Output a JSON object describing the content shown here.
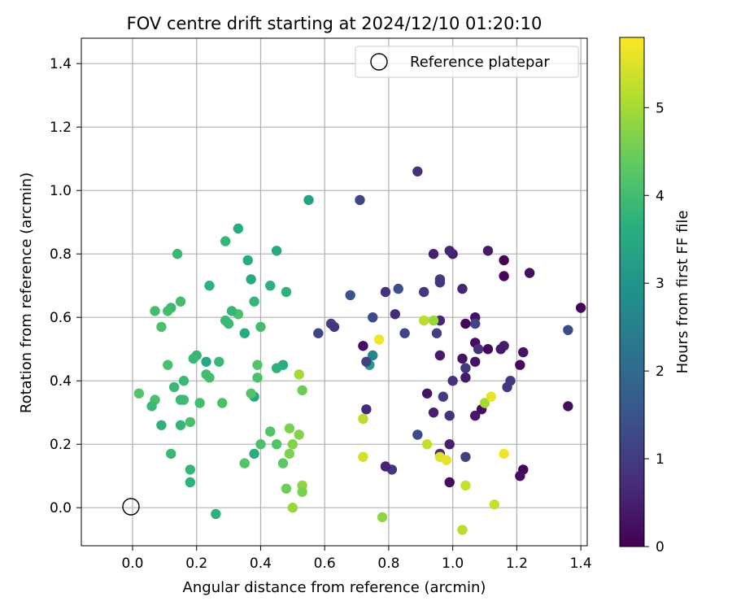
{
  "chart_data": {
    "type": "scatter",
    "title": "FOV centre drift starting at 2024/12/10 01:20:10",
    "xlabel": "Angular distance from reference (arcmin)",
    "ylabel": "Rotation from reference (arcmin)",
    "xlim": [
      -0.16,
      1.42
    ],
    "ylim": [
      -0.12,
      1.48
    ],
    "xticks": [
      0.0,
      0.2,
      0.4,
      0.6,
      0.8,
      1.0,
      1.2,
      1.4
    ],
    "xtick_labels": [
      "0.0",
      "0.2",
      "0.4",
      "0.6",
      "0.8",
      "1.0",
      "1.2",
      "1.4"
    ],
    "yticks": [
      0.0,
      0.2,
      0.4,
      0.6,
      0.8,
      1.0,
      1.2,
      1.4
    ],
    "ytick_labels": [
      "0.0",
      "0.2",
      "0.4",
      "0.6",
      "0.8",
      "1.0",
      "1.2",
      "1.4"
    ],
    "grid": true,
    "colormap": "viridis",
    "colorbar": {
      "label": "Hours from first FF file",
      "range": [
        0,
        5.8
      ],
      "ticks": [
        0,
        1,
        2,
        3,
        4,
        5
      ],
      "tick_labels": [
        "0",
        "1",
        "2",
        "3",
        "4",
        "5"
      ]
    },
    "legend": {
      "position": "top-right",
      "entries": [
        {
          "label": "Reference platepar",
          "marker": "open-circle"
        }
      ]
    },
    "reference_point": {
      "x": 0.0,
      "y": 0.0
    },
    "points": [
      [
        1.4,
        0.63,
        0.05
      ],
      [
        1.36,
        0.32,
        0.2
      ],
      [
        1.36,
        0.56,
        1.3
      ],
      [
        1.24,
        0.74,
        0.2
      ],
      [
        1.22,
        0.49,
        0.3
      ],
      [
        1.21,
        0.45,
        0.1
      ],
      [
        1.22,
        0.12,
        0.1
      ],
      [
        1.21,
        0.1,
        0.2
      ],
      [
        1.18,
        0.4,
        1.0
      ],
      [
        1.17,
        0.38,
        0.9
      ],
      [
        1.16,
        0.51,
        0.5
      ],
      [
        1.15,
        0.5,
        0.4
      ],
      [
        1.16,
        0.78,
        0.05
      ],
      [
        1.16,
        0.73,
        0.1
      ],
      [
        1.11,
        0.81,
        0.4
      ],
      [
        1.11,
        0.5,
        0.1
      ],
      [
        1.09,
        0.31,
        0.2
      ],
      [
        1.07,
        0.6,
        0.3
      ],
      [
        1.07,
        0.52,
        0.2
      ],
      [
        1.07,
        0.58,
        1.2
      ],
      [
        1.08,
        0.5,
        0.8
      ],
      [
        1.07,
        0.46,
        0.3
      ],
      [
        1.07,
        0.29,
        0.4
      ],
      [
        1.04,
        0.58,
        0.1
      ],
      [
        1.04,
        0.41,
        0.4
      ],
      [
        1.04,
        0.44,
        0.9
      ],
      [
        1.04,
        0.16,
        1.1
      ],
      [
        1.03,
        0.69,
        0.6
      ],
      [
        1.03,
        0.47,
        0.3
      ],
      [
        1.0,
        0.8,
        0.5
      ],
      [
        1.0,
        0.4,
        0.8
      ],
      [
        0.99,
        0.81,
        0.6
      ],
      [
        0.99,
        0.29,
        0.8
      ],
      [
        0.99,
        0.2,
        0.5
      ],
      [
        0.99,
        0.08,
        0.2
      ],
      [
        0.97,
        0.35,
        1.0
      ],
      [
        0.96,
        0.72,
        1.0
      ],
      [
        0.96,
        0.71,
        0.9
      ],
      [
        0.96,
        0.59,
        0.6
      ],
      [
        0.96,
        0.48,
        0.4
      ],
      [
        0.96,
        0.17,
        0.7
      ],
      [
        0.95,
        0.55,
        1.1
      ],
      [
        0.94,
        0.8,
        0.5
      ],
      [
        0.94,
        0.3,
        0.5
      ],
      [
        0.92,
        0.36,
        0.3
      ],
      [
        0.91,
        0.68,
        0.9
      ],
      [
        0.89,
        1.06,
        0.8
      ],
      [
        0.89,
        0.23,
        1.3
      ],
      [
        0.85,
        0.55,
        1.2
      ],
      [
        0.83,
        0.69,
        1.4
      ],
      [
        0.82,
        0.61,
        0.7
      ],
      [
        0.81,
        0.12,
        0.9
      ],
      [
        0.79,
        0.68,
        0.8
      ],
      [
        0.79,
        0.13,
        0.6
      ],
      [
        0.75,
        0.6,
        1.3
      ],
      [
        0.75,
        0.48,
        2.6
      ],
      [
        0.74,
        0.45,
        3.2
      ],
      [
        0.73,
        0.46,
        1.1
      ],
      [
        0.73,
        0.31,
        0.7
      ],
      [
        0.72,
        0.51,
        0.2
      ],
      [
        0.71,
        0.97,
        1.2
      ],
      [
        0.68,
        0.67,
        1.5
      ],
      [
        0.62,
        0.58,
        1.1
      ],
      [
        0.63,
        0.57,
        0.9
      ],
      [
        0.58,
        0.55,
        1.2
      ],
      [
        0.77,
        0.53,
        5.7
      ],
      [
        0.72,
        0.28,
        5.2
      ],
      [
        0.72,
        0.16,
        5.4
      ],
      [
        0.78,
        -0.03,
        4.8
      ],
      [
        0.91,
        0.59,
        5.2
      ],
      [
        0.94,
        0.59,
        4.9
      ],
      [
        0.92,
        0.2,
        5.3
      ],
      [
        0.96,
        0.16,
        5.5
      ],
      [
        0.98,
        0.15,
        5.6
      ],
      [
        1.03,
        -0.07,
        5.2
      ],
      [
        1.04,
        0.07,
        5.3
      ],
      [
        1.1,
        0.33,
        5.0
      ],
      [
        1.12,
        0.35,
        5.6
      ],
      [
        1.13,
        0.01,
        5.3
      ],
      [
        1.16,
        0.17,
        5.7
      ],
      [
        0.55,
        0.97,
        3.3
      ],
      [
        0.53,
        0.37,
        4.5
      ],
      [
        0.53,
        0.07,
        4.8
      ],
      [
        0.53,
        0.05,
        4.6
      ],
      [
        0.52,
        0.42,
        5.0
      ],
      [
        0.52,
        0.23,
        4.7
      ],
      [
        0.5,
        0.2,
        4.7
      ],
      [
        0.5,
        0.0,
        4.9
      ],
      [
        0.49,
        0.25,
        4.6
      ],
      [
        0.49,
        0.17,
        4.6
      ],
      [
        0.48,
        0.06,
        4.5
      ],
      [
        0.47,
        0.14,
        4.3
      ],
      [
        0.48,
        0.68,
        3.7
      ],
      [
        0.47,
        0.45,
        3.6
      ],
      [
        0.45,
        0.81,
        3.5
      ],
      [
        0.45,
        0.44,
        3.7
      ],
      [
        0.45,
        0.2,
        4.2
      ],
      [
        0.43,
        0.7,
        3.7
      ],
      [
        0.43,
        0.24,
        4.2
      ],
      [
        0.4,
        0.57,
        4.0
      ],
      [
        0.4,
        0.2,
        4.1
      ],
      [
        0.39,
        0.45,
        4.2
      ],
      [
        0.39,
        0.41,
        4.1
      ],
      [
        0.38,
        0.35,
        3.4
      ],
      [
        0.38,
        0.65,
        3.8
      ],
      [
        0.37,
        0.72,
        3.5
      ],
      [
        0.38,
        0.17,
        3.6
      ],
      [
        0.37,
        0.36,
        4.2
      ],
      [
        0.36,
        0.78,
        3.6
      ],
      [
        0.35,
        0.14,
        4.2
      ],
      [
        0.35,
        0.55,
        3.5
      ],
      [
        0.33,
        0.88,
        3.6
      ],
      [
        0.33,
        0.61,
        4.1
      ],
      [
        0.31,
        0.62,
        3.8
      ],
      [
        0.3,
        0.58,
        3.9
      ],
      [
        0.29,
        0.84,
        3.8
      ],
      [
        0.29,
        0.59,
        3.9
      ],
      [
        0.28,
        0.33,
        4.1
      ],
      [
        0.27,
        0.46,
        3.9
      ],
      [
        0.26,
        -0.02,
        3.7
      ],
      [
        0.24,
        0.41,
        4.0
      ],
      [
        0.24,
        0.7,
        3.7
      ],
      [
        0.23,
        0.46,
        3.5
      ],
      [
        0.23,
        0.42,
        4.0
      ],
      [
        0.21,
        0.33,
        4.0
      ],
      [
        0.2,
        0.48,
        3.8
      ],
      [
        0.19,
        0.47,
        3.9
      ],
      [
        0.18,
        0.12,
        3.8
      ],
      [
        0.18,
        0.08,
        3.7
      ],
      [
        0.18,
        0.27,
        4.1
      ],
      [
        0.16,
        0.4,
        3.9
      ],
      [
        0.16,
        0.34,
        4.0
      ],
      [
        0.15,
        0.65,
        4.0
      ],
      [
        0.15,
        0.34,
        3.9
      ],
      [
        0.15,
        0.26,
        3.8
      ],
      [
        0.14,
        0.8,
        3.9
      ],
      [
        0.13,
        0.38,
        3.9
      ],
      [
        0.12,
        0.17,
        3.9
      ],
      [
        0.12,
        0.63,
        3.9
      ],
      [
        0.11,
        0.45,
        4.1
      ],
      [
        0.11,
        0.62,
        4.0
      ],
      [
        0.09,
        0.26,
        3.7
      ],
      [
        0.09,
        0.57,
        4.1
      ],
      [
        0.07,
        0.62,
        4.0
      ],
      [
        0.07,
        0.34,
        4.1
      ],
      [
        0.06,
        0.32,
        3.9
      ],
      [
        0.02,
        0.36,
        4.2
      ]
    ]
  }
}
